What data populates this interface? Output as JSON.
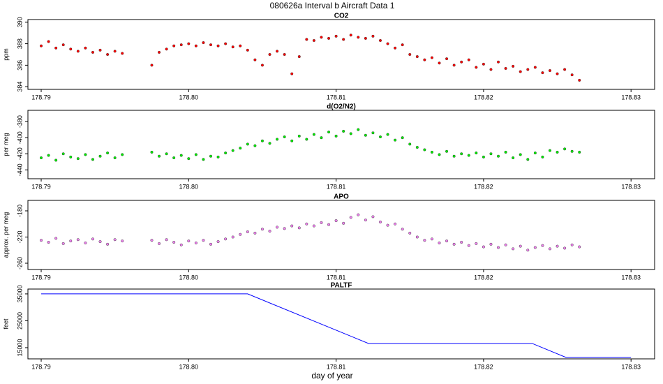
{
  "title": "080626a   Interval b Aircraft Data 1",
  "xlabel": "day of year",
  "chart_data": [
    {
      "type": "scatter",
      "title": "CO2",
      "ylabel": "ppm",
      "color": "#ff0000",
      "xlim": [
        178.7891,
        178.8316
      ],
      "ylim": [
        383.75,
        390.25
      ],
      "xticks": [
        178.79,
        {
          "value": 178.8,
          "label": "178.80"
        },
        178.81,
        178.82,
        178.83
      ],
      "yticks": [
        384,
        386,
        388,
        390
      ],
      "x": [
        178.79,
        178.7905,
        178.791,
        178.7915,
        178.792,
        178.7925,
        178.793,
        178.7935,
        178.794,
        178.7945,
        178.795,
        178.7955,
        178.7975,
        178.798,
        178.7985,
        178.799,
        178.7995,
        178.8,
        178.8005,
        178.801,
        178.8015,
        178.802,
        178.8025,
        178.803,
        178.8035,
        178.804,
        178.8045,
        178.805,
        178.8055,
        178.806,
        178.8065,
        178.807,
        178.8075,
        178.808,
        178.8085,
        178.809,
        178.8095,
        178.81,
        178.8105,
        178.811,
        178.8115,
        178.812,
        178.8125,
        178.813,
        178.8135,
        178.814,
        178.8145,
        178.815,
        178.8155,
        178.816,
        178.8165,
        178.817,
        178.8175,
        178.818,
        178.8185,
        178.819,
        178.8195,
        178.82,
        178.8205,
        178.821,
        178.8215,
        178.822,
        178.8225,
        178.823,
        178.8235,
        178.824,
        178.8245,
        178.825,
        178.8255,
        178.826,
        178.8265
      ],
      "values": [
        387.8,
        388.2,
        387.6,
        387.9,
        387.5,
        387.3,
        387.6,
        387.2,
        387.4,
        387.0,
        387.3,
        387.1,
        386.0,
        387.2,
        387.5,
        387.8,
        387.9,
        388.0,
        387.8,
        388.1,
        387.9,
        387.8,
        388.0,
        387.7,
        387.8,
        387.4,
        386.5,
        386.0,
        387.0,
        387.3,
        387.0,
        385.2,
        386.8,
        388.4,
        388.3,
        388.6,
        388.5,
        388.7,
        388.4,
        388.8,
        388.6,
        388.5,
        388.7,
        388.3,
        388.0,
        387.6,
        387.9,
        387.0,
        386.8,
        386.5,
        386.7,
        386.2,
        386.6,
        386.0,
        386.3,
        386.5,
        385.8,
        386.1,
        385.6,
        386.3,
        385.7,
        385.9,
        385.4,
        385.6,
        385.8,
        385.3,
        385.5,
        385.2,
        385.6,
        385.1,
        384.6
      ]
    },
    {
      "type": "scatter",
      "title": "d(O2/N2)",
      "ylabel": "per meg",
      "color": "#00ee00",
      "xlim": [
        178.7891,
        178.8316
      ],
      "ylim": [
        -451,
        -366
      ],
      "xticks": [
        178.79,
        {
          "value": 178.8,
          "label": "178.80"
        },
        178.81,
        178.82,
        178.83
      ],
      "yticks": [
        -380,
        -400,
        -420,
        -440
      ],
      "x": [
        178.79,
        178.7905,
        178.791,
        178.7915,
        178.792,
        178.7925,
        178.793,
        178.7935,
        178.794,
        178.7945,
        178.795,
        178.7955,
        178.7975,
        178.798,
        178.7985,
        178.799,
        178.7995,
        178.8,
        178.8005,
        178.801,
        178.8015,
        178.802,
        178.8025,
        178.803,
        178.8035,
        178.804,
        178.8045,
        178.805,
        178.8055,
        178.806,
        178.8065,
        178.807,
        178.8075,
        178.808,
        178.8085,
        178.809,
        178.8095,
        178.81,
        178.8105,
        178.811,
        178.8115,
        178.812,
        178.8125,
        178.813,
        178.8135,
        178.814,
        178.8145,
        178.815,
        178.8155,
        178.816,
        178.8165,
        178.817,
        178.8175,
        178.818,
        178.8185,
        178.819,
        178.8195,
        178.82,
        178.8205,
        178.821,
        178.8215,
        178.822,
        178.8225,
        178.823,
        178.8235,
        178.824,
        178.8245,
        178.825,
        178.8255,
        178.826,
        178.8265
      ],
      "values": [
        -425,
        -422,
        -428,
        -420,
        -424,
        -426,
        -421,
        -427,
        -423,
        -419,
        -425,
        -421,
        -418,
        -423,
        -420,
        -425,
        -422,
        -426,
        -421,
        -427,
        -423,
        -424,
        -419,
        -416,
        -413,
        -408,
        -410,
        -404,
        -407,
        -402,
        -399,
        -404,
        -398,
        -402,
        -396,
        -400,
        -393,
        -398,
        -392,
        -395,
        -390,
        -397,
        -394,
        -399,
        -396,
        -403,
        -400,
        -408,
        -412,
        -415,
        -418,
        -421,
        -417,
        -423,
        -420,
        -422,
        -419,
        -424,
        -420,
        -423,
        -418,
        -425,
        -421,
        -427,
        -419,
        -424,
        -416,
        -418,
        -414,
        -417,
        -418
      ]
    },
    {
      "type": "scatter",
      "title": "APO",
      "ylabel": "approx. per meg",
      "color": "#ee82ee",
      "xlim": [
        178.7891,
        178.8316
      ],
      "ylim": [
        -269.6,
        -164
      ],
      "xticks": [
        178.79,
        {
          "value": 178.8,
          "label": "178.80"
        },
        178.81,
        178.82,
        178.83
      ],
      "yticks": [
        -180,
        -220,
        -260
      ],
      "x": [
        178.79,
        178.7905,
        178.791,
        178.7915,
        178.792,
        178.7925,
        178.793,
        178.7935,
        178.794,
        178.7945,
        178.795,
        178.7955,
        178.7975,
        178.798,
        178.7985,
        178.799,
        178.7995,
        178.8,
        178.8005,
        178.801,
        178.8015,
        178.802,
        178.8025,
        178.803,
        178.8035,
        178.804,
        178.8045,
        178.805,
        178.8055,
        178.806,
        178.8065,
        178.807,
        178.8075,
        178.808,
        178.8085,
        178.809,
        178.8095,
        178.81,
        178.8105,
        178.811,
        178.8115,
        178.812,
        178.8125,
        178.813,
        178.8135,
        178.814,
        178.8145,
        178.815,
        178.8155,
        178.816,
        178.8165,
        178.817,
        178.8175,
        178.818,
        178.8185,
        178.819,
        178.8195,
        178.82,
        178.8205,
        178.821,
        178.8215,
        178.822,
        178.8225,
        178.823,
        178.8235,
        178.824,
        178.8245,
        178.825,
        178.8255,
        178.826,
        178.8265
      ],
      "values": [
        -225,
        -228,
        -222,
        -230,
        -226,
        -224,
        -229,
        -223,
        -227,
        -231,
        -224,
        -226,
        -225,
        -230,
        -224,
        -228,
        -232,
        -226,
        -229,
        -225,
        -231,
        -227,
        -223,
        -220,
        -216,
        -212,
        -214,
        -208,
        -211,
        -205,
        -207,
        -203,
        -206,
        -200,
        -203,
        -198,
        -201,
        -195,
        -199,
        -190,
        -186,
        -194,
        -189,
        -197,
        -202,
        -200,
        -208,
        -214,
        -220,
        -225,
        -223,
        -229,
        -226,
        -231,
        -228,
        -233,
        -230,
        -235,
        -231,
        -236,
        -232,
        -238,
        -234,
        -240,
        -236,
        -233,
        -238,
        -234,
        -237,
        -232,
        -235
      ]
    },
    {
      "type": "line",
      "title": "PALTF",
      "ylabel": "feet",
      "color": "#0000ff",
      "xlim": [
        178.7891,
        178.8316
      ],
      "ylim": [
        10840,
        36800
      ],
      "xticks": [
        178.79,
        {
          "value": 178.8,
          "label": "178.80"
        },
        178.81,
        178.82,
        178.83
      ],
      "yticks": [
        15000,
        25000,
        35000
      ],
      "x": [
        178.79,
        178.804,
        178.8122,
        178.8233,
        178.8256,
        178.83
      ],
      "values": [
        35000,
        35000,
        16560,
        16560,
        11360,
        11360
      ]
    }
  ]
}
